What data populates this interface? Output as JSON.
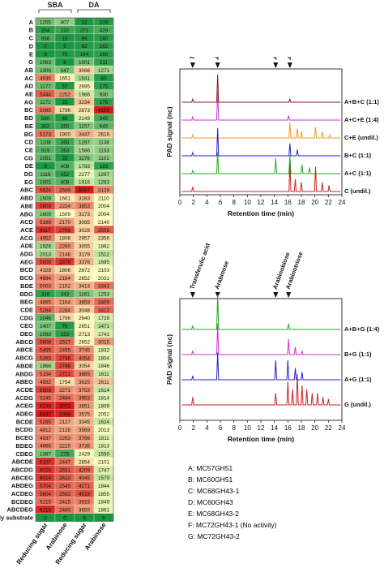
{
  "heatmap": {
    "group_labels": [
      "SBA",
      "DA"
    ],
    "column_labels": [
      "Reducing sugar",
      "Arabinose",
      "Reducing sugar",
      "Arabinose"
    ],
    "rows": [
      {
        "label": "A",
        "values": [
          1255,
          807,
          12,
          109
        ]
      },
      {
        "label": "B",
        "values": [
          254,
          232,
          271,
          429
        ]
      },
      {
        "label": "C",
        "values": [
          656,
          10,
          89,
          140
        ]
      },
      {
        "label": "D",
        "values": [
          0,
          5,
          82,
          162
        ]
      },
      {
        "label": "E",
        "values": [
          8,
          70,
          144,
          160
        ]
      },
      {
        "label": "G",
        "values": [
          1063,
          8,
          1001,
          211
        ]
      },
      {
        "label": "AB",
        "values": [
          1300,
          647,
          3066,
          1271
        ]
      },
      {
        "label": "AC",
        "values": [
          4935,
          1651,
          1641,
          80
        ]
      },
      {
        "label": "AD",
        "values": [
          1177,
          57,
          2695,
          175
        ]
      },
      {
        "label": "AE",
        "values": [
          5444,
          2252,
          1986,
          930
        ]
      },
      {
        "label": "AG",
        "values": [
          1172,
          23,
          3234,
          176
        ]
      },
      {
        "label": "BC",
        "values": [
          5085,
          1796,
          2873,
          4159
        ]
      },
      {
        "label": "BD",
        "values": [
          580,
          40,
          2149,
          345
        ]
      },
      {
        "label": "BE",
        "values": [
          382,
          260,
          1157,
          645
        ]
      },
      {
        "label": "BG",
        "values": [
          5173,
          1900,
          3447,
          2616
        ]
      },
      {
        "label": "CD",
        "values": [
          1108,
          260,
          1297,
          1138
        ]
      },
      {
        "label": "CE",
        "values": [
          919,
          263,
          1586,
          1103
        ]
      },
      {
        "label": "CG",
        "values": [
          1051,
          23,
          1176,
          1101
        ]
      },
      {
        "label": "DE",
        "values": [
          8,
          409,
          1793,
          183
        ]
      },
      {
        "label": "DG",
        "values": [
          1116,
          152,
          2277,
          1297
        ]
      },
      {
        "label": "EG",
        "values": [
          1001,
          409,
          1916,
          1263
        ]
      },
      {
        "label": "ABC",
        "values": [
          5624,
          2509,
          5097,
          3129
        ]
      },
      {
        "label": "ABD",
        "values": [
          1509,
          1661,
          3183,
          2110
        ]
      },
      {
        "label": "ABE",
        "values": [
          5809,
          2224,
          3853,
          2004
        ]
      },
      {
        "label": "ABG",
        "values": [
          1609,
          1509,
          3173,
          2004
        ]
      },
      {
        "label": "ACD",
        "values": [
          5169,
          2170,
          3065,
          2140
        ]
      },
      {
        "label": "ACE",
        "values": [
          6117,
          2789,
          3028,
          3556
        ]
      },
      {
        "label": "ACG",
        "values": [
          4952,
          1808,
          2957,
          2356
        ]
      },
      {
        "label": "ADE",
        "values": [
          1926,
          2260,
          3055,
          1862
        ]
      },
      {
        "label": "ADG",
        "values": [
          2013,
          2148,
          3179,
          1512
        ]
      },
      {
        "label": "AEG",
        "values": [
          5608,
          2879,
          3376,
          1695
        ]
      },
      {
        "label": "BCD",
        "values": [
          4328,
          1806,
          2672,
          2103
        ]
      },
      {
        "label": "BCG",
        "values": [
          4984,
          2164,
          2652,
          2031
        ]
      },
      {
        "label": "BDE",
        "values": [
          5003,
          2152,
          3413,
          3343
        ]
      },
      {
        "label": "BDG",
        "values": [
          316,
          343,
          1161,
          1253
        ]
      },
      {
        "label": "BEG",
        "values": [
          4865,
          2164,
          3659,
          3409
        ]
      },
      {
        "label": "CDE",
        "values": [
          5284,
          2284,
          3048,
          3413
        ]
      },
      {
        "label": "CDG",
        "values": [
          1046,
          1766,
          2640,
          1728
        ]
      },
      {
        "label": "CEG",
        "values": [
          1407,
          76,
          2651,
          1471
        ]
      },
      {
        "label": "DEG",
        "values": [
          1093,
          153,
          2713,
          1741
        ]
      },
      {
        "label": "ABCD",
        "values": [
          5608,
          2527,
          2652,
          3015
        ]
      },
      {
        "label": "ABCE",
        "values": [
          5455,
          2455,
          3745,
          1832
        ]
      },
      {
        "label": "ABCG",
        "values": [
          5365,
          2746,
          4054,
          1804
        ]
      },
      {
        "label": "ABDE",
        "values": [
          1866,
          2746,
          3054,
          1846
        ]
      },
      {
        "label": "ABDG",
        "values": [
          5154,
          2721,
          3885,
          1611
        ]
      },
      {
        "label": "ABEG",
        "values": [
          4982,
          1754,
          3625,
          2611
        ]
      },
      {
        "label": "ACDE",
        "values": [
          5903,
          2271,
          3753,
          1614
        ]
      },
      {
        "label": "ACDG",
        "values": [
          5245,
          2484,
          3953,
          1814
        ]
      },
      {
        "label": "ACEG",
        "values": [
          6236,
          3073,
          3651,
          1809
        ]
      },
      {
        "label": "ADEG",
        "values": [
          6437,
          2999,
          3575,
          2052
        ]
      },
      {
        "label": "BCDE",
        "values": [
          5285,
          2127,
          3345,
          1624
        ]
      },
      {
        "label": "BCDG",
        "values": [
          4812,
          2128,
          3569,
          2013
        ]
      },
      {
        "label": "BCEG",
        "values": [
          4937,
          2263,
          3766,
          1811
        ]
      },
      {
        "label": "BDEG",
        "values": [
          4966,
          2225,
          3735,
          1813
        ]
      },
      {
        "label": "CDEG",
        "values": [
          1387,
          275,
          2429,
          1550
        ]
      },
      {
        "label": "ABCDE",
        "values": [
          6107,
          2447,
          2854,
          2101
        ]
      },
      {
        "label": "ABCDG",
        "values": [
          6026,
          2651,
          4209,
          1747
        ]
      },
      {
        "label": "ABCEG",
        "values": [
          6014,
          2610,
          4045,
          1579
        ]
      },
      {
        "label": "ABDEG",
        "values": [
          5704,
          2545,
          4271,
          1844
        ]
      },
      {
        "label": "ACDEG",
        "values": [
          5604,
          2592,
          4519,
          1855
        ]
      },
      {
        "label": "BCDEG",
        "values": [
          5215,
          2415,
          3915,
          1849
        ]
      },
      {
        "label": "ABCDEG",
        "values": [
          6215,
          2480,
          3650,
          1861
        ]
      },
      {
        "label": "Only substrate",
        "values": [
          0,
          0,
          0,
          0
        ]
      }
    ]
  },
  "chromatogram_top": {
    "ylabel": "PAD signal (nc)",
    "xlabel": "Retention time (min)",
    "xticks": [
      0,
      2,
      4,
      6,
      8,
      10,
      12,
      14,
      16,
      18,
      20,
      22,
      24
    ],
    "markers": [
      {
        "label": "Transferulic acid",
        "time": 1.9
      },
      {
        "label": "Arabinose",
        "time": 5.6
      },
      {
        "label": "Arabinobiose",
        "time": 14.2
      },
      {
        "label": "Arabinotriose",
        "time": 16.3
      }
    ],
    "traces": [
      {
        "label": "A+B+C (1:1)",
        "color": "#8b1a1a",
        "peaks": [
          [
            1.9,
            0.1
          ],
          [
            5.6,
            0.9
          ],
          [
            16.3,
            0.1
          ]
        ]
      },
      {
        "label": "A+C+E (1:4)",
        "color": "#cc33cc",
        "peaks": [
          [
            1.9,
            0.1
          ],
          [
            5.6,
            0.95
          ],
          [
            16.1,
            0.15
          ]
        ]
      },
      {
        "label": "C+E (undil.)",
        "color": "#f39c12",
        "peaks": [
          [
            1.9,
            0.1
          ],
          [
            16.3,
            0.5
          ],
          [
            17.4,
            0.3
          ],
          [
            18.0,
            0.2
          ],
          [
            20.1,
            0.35
          ],
          [
            21.1,
            0.2
          ],
          [
            22.2,
            0.1
          ]
        ]
      },
      {
        "label": "B+C (1:1)",
        "color": "#2222cc",
        "peaks": [
          [
            1.9,
            0.1
          ],
          [
            5.6,
            0.9
          ],
          [
            16.3,
            0.4
          ],
          [
            17.4,
            0.2
          ]
        ]
      },
      {
        "label": "A+C (1:1)",
        "color": "#22aa22",
        "peaks": [
          [
            1.9,
            0.1
          ],
          [
            5.6,
            0.7
          ],
          [
            14.2,
            0.5
          ],
          [
            16.3,
            0.6
          ],
          [
            18.1,
            0.3
          ],
          [
            19.2,
            0.2
          ]
        ]
      },
      {
        "label": "C (undil.)",
        "color": "#cc2222",
        "peaks": [
          [
            1.9,
            0.15
          ],
          [
            16.3,
            0.9
          ],
          [
            17.1,
            0.4
          ],
          [
            18.0,
            0.3
          ],
          [
            20.1,
            0.8
          ],
          [
            21.1,
            0.3
          ],
          [
            22.1,
            0.2
          ]
        ]
      }
    ]
  },
  "chromatogram_bottom": {
    "ylabel": "PAD signal (nc)",
    "xlabel": "Retention time (min)",
    "xticks": [
      0,
      2,
      4,
      6,
      8,
      10,
      12,
      14,
      16,
      18,
      20,
      22,
      24
    ],
    "markers": [
      {
        "label": "Transferulic acid",
        "time": 1.9
      },
      {
        "label": "Arabinose",
        "time": 5.6
      },
      {
        "label": "Arabinobiose",
        "time": 14.2
      },
      {
        "label": "Arabinotriose",
        "time": 16.1
      }
    ],
    "traces": [
      {
        "label": "A+B+G (1:4)",
        "color": "#22aa22",
        "peaks": [
          [
            1.9,
            0.1
          ],
          [
            5.6,
            0.9
          ],
          [
            16.1,
            0.15
          ]
        ]
      },
      {
        "label": "B+G (1:1)",
        "color": "#cc33cc",
        "peaks": [
          [
            1.9,
            0.1
          ],
          [
            5.6,
            0.8
          ],
          [
            16.1,
            0.4
          ],
          [
            17.1,
            0.2
          ],
          [
            18.1,
            0.1
          ]
        ]
      },
      {
        "label": "A+G (1:1)",
        "color": "#2222cc",
        "peaks": [
          [
            1.9,
            0.1
          ],
          [
            5.6,
            0.7
          ],
          [
            14.2,
            0.5
          ],
          [
            16.0,
            0.5
          ],
          [
            17.1,
            0.3
          ],
          [
            18.1,
            0.2
          ]
        ]
      },
      {
        "label": "G (undil.)",
        "color": "#cc2222",
        "peaks": [
          [
            1.9,
            0.2
          ],
          [
            14.2,
            0.3
          ],
          [
            16.0,
            0.6
          ],
          [
            16.7,
            0.4
          ],
          [
            17.4,
            0.8
          ],
          [
            18.1,
            0.5
          ],
          [
            18.8,
            0.4
          ],
          [
            19.6,
            0.3
          ],
          [
            20.4,
            0.3
          ],
          [
            21.2,
            0.2
          ],
          [
            22.0,
            0.15
          ]
        ]
      }
    ]
  },
  "legend": [
    "A: MC57GH51",
    "B: MC60GH51",
    "C: MC68GH43-1",
    "D: MC60GH43",
    "E: MC68GH43-2",
    "F: MC72GH43-1 (No activity)",
    "G: MC72GH43-2"
  ],
  "colors": {
    "low": "#1a9641",
    "mid": "#ffffbf",
    "high": "#d7191c"
  }
}
